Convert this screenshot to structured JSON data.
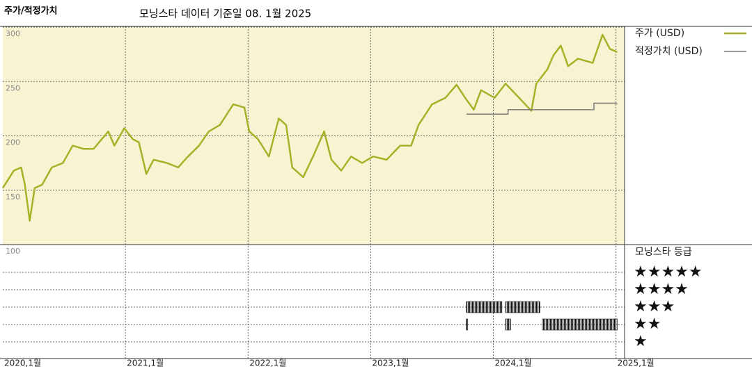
{
  "chart_data": {
    "type": "line",
    "title": "주가/적정가치",
    "subtitle": "모닝스타 데이터 기준일 08. 1월 2025",
    "xlim": [
      2020,
      2025.07
    ],
    "xticks": [
      {
        "value": 2020,
        "label": "2020,1월"
      },
      {
        "value": 2021,
        "label": "2021,1월"
      },
      {
        "value": 2022,
        "label": "2022,1월"
      },
      {
        "value": 2023,
        "label": "2023,1월"
      },
      {
        "value": 2024,
        "label": "2024,1월"
      },
      {
        "value": 2025,
        "label": "2025,1월"
      }
    ],
    "ylim": [
      100,
      300
    ],
    "yticks": [
      100,
      150,
      200,
      250,
      300
    ],
    "grid": true,
    "series": [
      {
        "name": "주가 (USD)",
        "color": "#a8b028",
        "x": [
          2020.0,
          2020.09,
          2020.15,
          2020.18,
          2020.22,
          2020.26,
          2020.32,
          2020.4,
          2020.49,
          2020.57,
          2020.66,
          2020.74,
          2020.86,
          2020.91,
          2020.99,
          2021.06,
          2021.11,
          2021.17,
          2021.23,
          2021.34,
          2021.43,
          2021.51,
          2021.6,
          2021.68,
          2021.77,
          2021.88,
          2021.97,
          2022.01,
          2022.08,
          2022.17,
          2022.25,
          2022.31,
          2022.36,
          2022.45,
          2022.53,
          2022.62,
          2022.68,
          2022.76,
          2022.84,
          2022.93,
          2023.02,
          2023.13,
          2023.24,
          2023.33,
          2023.39,
          2023.5,
          2023.61,
          2023.7,
          2023.77,
          2023.84,
          2023.9,
          2024.01,
          2024.1,
          2024.21,
          2024.31,
          2024.35,
          2024.44,
          2024.49,
          2024.55,
          2024.61,
          2024.69,
          2024.81,
          2024.89,
          2024.95,
          2025.01
        ],
        "values": [
          152,
          168,
          171,
          155,
          122,
          152,
          155,
          171,
          175,
          191,
          188,
          188,
          204,
          191,
          207,
          197,
          194,
          165,
          178,
          175,
          171,
          181,
          191,
          204,
          210,
          229,
          226,
          204,
          197,
          181,
          216,
          210,
          171,
          162,
          181,
          204,
          178,
          168,
          181,
          175,
          181,
          178,
          191,
          191,
          210,
          229,
          235,
          247,
          235,
          224,
          242,
          235,
          248,
          235,
          223,
          248,
          261,
          274,
          283,
          264,
          271,
          267,
          293,
          280,
          277
        ]
      },
      {
        "name": "적정가치 (USD)",
        "color": "#777777",
        "x": [
          2023.78,
          2024.12,
          2024.12,
          2024.82,
          2024.82,
          2025.01
        ],
        "values": [
          220,
          220,
          224,
          224,
          230,
          230
        ]
      }
    ],
    "rating": {
      "title": "모닝스타 등급",
      "levels": [
        "★★★★★",
        "★★★★",
        "★★★",
        "★★",
        "★"
      ],
      "periods": [
        {
          "stars": 3,
          "start": 2023.78,
          "end": 2024.07
        },
        {
          "stars": 3,
          "start": 2024.1,
          "end": 2024.38
        },
        {
          "stars": 2,
          "start": 2023.78,
          "end": 2023.79
        },
        {
          "stars": 2,
          "start": 2024.1,
          "end": 2024.14
        },
        {
          "stars": 2,
          "start": 2024.4,
          "end": 2025.01
        }
      ]
    }
  }
}
